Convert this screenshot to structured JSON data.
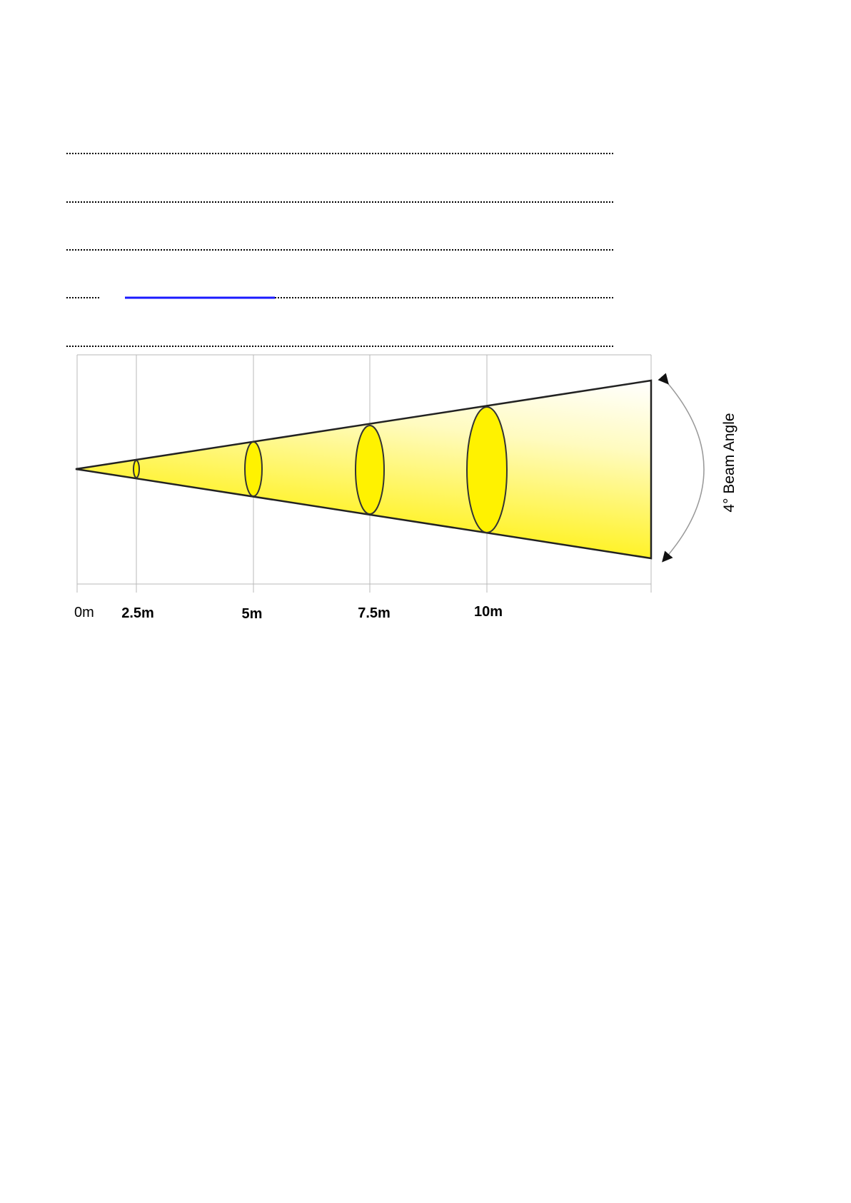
{
  "diagram": {
    "distance_labels": [
      "0m",
      "2.5m",
      "5m",
      "7.5m",
      "10m"
    ],
    "angle_label": "4° Beam Angle"
  }
}
